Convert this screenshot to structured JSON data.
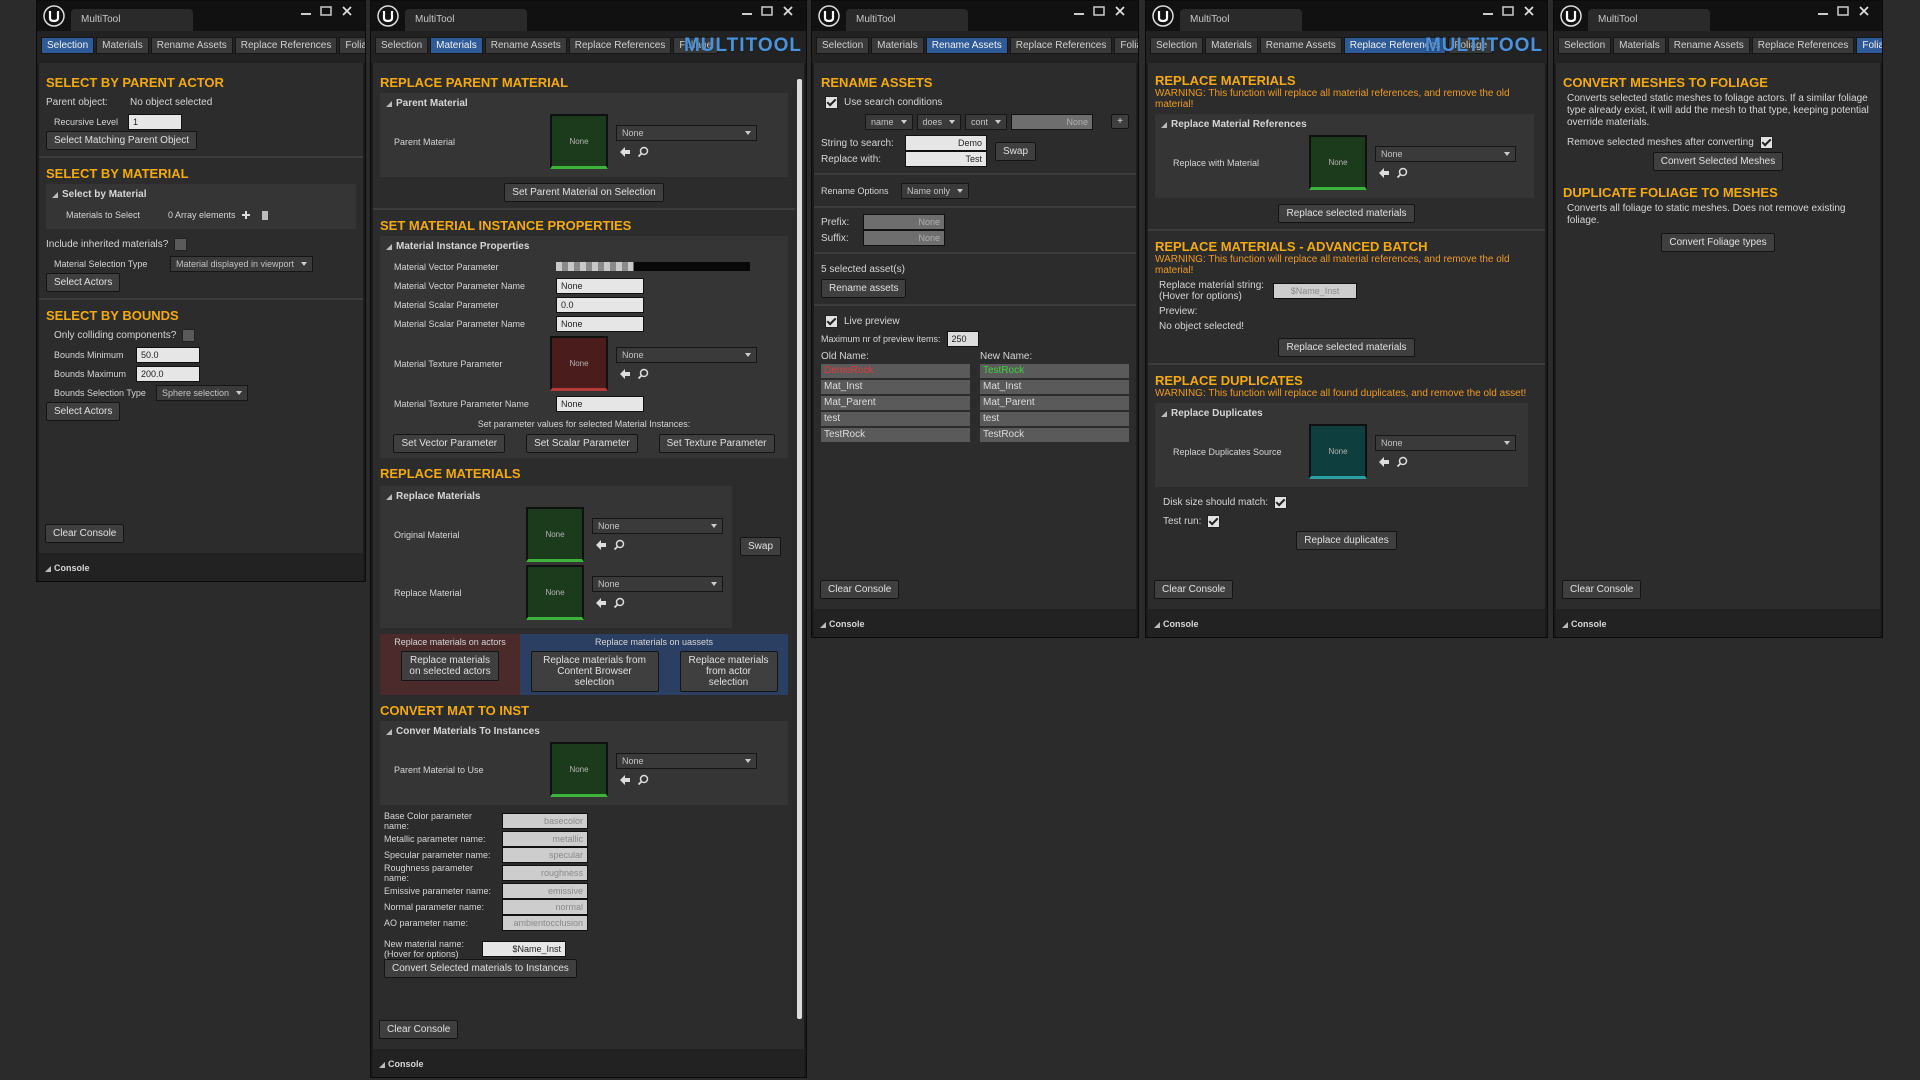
{
  "windows": [
    {
      "title": "MultiTool",
      "tabs": [
        "Selection",
        "Materials",
        "Rename Assets",
        "Replace References",
        "Foliage"
      ],
      "active": 0,
      "parent": {
        "heading": "SELECT BY PARENT ACTOR",
        "object_label": "Parent object:",
        "object_value": "No object selected",
        "level_label": "Recursive Level",
        "level_value": "1",
        "button": "Select Matching Parent Object"
      },
      "material": {
        "heading": "SELECT BY MATERIAL",
        "group": "Select by Material",
        "array_label": "Materials to Select",
        "array_value": "0 Array elements",
        "inherited": "Include inherited materials?",
        "inherited_checked": false,
        "type_label": "Material Selection Type",
        "type_value": "Material displayed in viewport",
        "button": "Select Actors"
      },
      "bounds": {
        "heading": "SELECT BY BOUNDS",
        "colliding": "Only colliding components?",
        "colliding_checked": false,
        "min_label": "Bounds Minimum",
        "min_value": "50.0",
        "max_label": "Bounds Maximum",
        "max_value": "200.0",
        "type_label": "Bounds Selection Type",
        "type_value": "Sphere selection",
        "button": "Select Actors"
      },
      "clear": "Clear Console",
      "console": "Console"
    },
    {
      "title": "MultiTool",
      "tabs": [
        "Selection",
        "Materials",
        "Rename Assets",
        "Replace References",
        "Foliage"
      ],
      "active": 1,
      "logo": "MULTITOOL",
      "parent": {
        "heading": "REPLACE PARENT MATERIAL",
        "group": "Parent Material",
        "label": "Parent Material",
        "thumb": "None",
        "dropdown": "None",
        "button": "Set Parent Material on Selection"
      },
      "instance": {
        "heading": "SET MATERIAL INSTANCE PROPERTIES",
        "group": "Material Instance Properties",
        "vector": "Material Vector Parameter",
        "vector_name": "Material Vector Parameter Name",
        "vector_name_value": "None",
        "scalar": "Material Scalar Parameter",
        "scalar_value": "0.0",
        "scalar_name": "Material Scalar Parameter Name",
        "scalar_name_value": "None",
        "texture": "Material Texture Parameter",
        "texture_thumb": "None",
        "texture_dropdown": "None",
        "texture_name": "Material Texture Parameter Name",
        "texture_name_value": "None",
        "note": "Set parameter values for selected Material Instances:",
        "buttons": [
          "Set Vector Parameter",
          "Set Scalar Parameter",
          "Set Texture Parameter"
        ]
      },
      "replace": {
        "heading": "REPLACE MATERIALS",
        "group": "Replace Materials",
        "original": "Original Material",
        "original_thumb": "None",
        "original_dropdown": "None",
        "replacement": "Replace Material",
        "replacement_thumb": "None",
        "replacement_dropdown": "None",
        "swap": "Swap",
        "actors_title": "Replace materials on actors",
        "actors_button": "Replace materials on selected actors",
        "uassets_title": "Replace materials on uassets",
        "uassets_buttons": [
          "Replace materials from Content Browser selection",
          "Replace materials from actor selection"
        ]
      },
      "convert": {
        "heading": "CONVERT MAT TO INST",
        "group": "Conver Materials To Instances",
        "label": "Parent Material to Use",
        "thumb": "None",
        "dropdown": "None",
        "params": [
          {
            "label": "Base Color parameter name:",
            "value": "basecolor"
          },
          {
            "label": "Metallic parameter name:",
            "value": "metallic"
          },
          {
            "label": "Specular parameter name:",
            "value": "specular"
          },
          {
            "label": "Roughness parameter name:",
            "value": "roughness"
          },
          {
            "label": "Emissive parameter name:",
            "value": "emissive"
          },
          {
            "label": "Normal parameter name:",
            "value": "normal"
          },
          {
            "label": "AO parameter name:",
            "value": "ambientocclusion"
          }
        ],
        "name_label": [
          "New material name:",
          "(Hover for options)"
        ],
        "name_value": "$Name_Inst",
        "button": "Convert Selected materials to Instances"
      },
      "clear": "Clear Console",
      "console": "Console"
    },
    {
      "title": "MultiTool",
      "tabs": [
        "Selection",
        "Materials",
        "Rename Assets",
        "Replace References",
        "Foliage"
      ],
      "active": 2,
      "rename": {
        "heading": "RENAME ASSETS",
        "search_conditions": "Use search conditions",
        "search_checked": true,
        "conditions": [
          "name",
          "does",
          "cont"
        ],
        "condition_value": "None",
        "add": "+",
        "search_label": "String to search:",
        "search_value": "Demo",
        "replace_label": "Replace with:",
        "replace_value": "Test",
        "swap": "Swap",
        "options_label": "Rename Options",
        "options_value": "Name only",
        "prefix_label": "Prefix:",
        "prefix_value": "None",
        "suffix_label": "Suffix:",
        "suffix_value": "None",
        "selected": "5  selected asset(s)",
        "button": "Rename assets",
        "live": "Live preview",
        "live_checked": true,
        "max_label": "Maximum nr of preview items:",
        "max_value": "250",
        "old_header": "Old Name:",
        "new_header": "New Name:",
        "old_names": [
          "DemoRock",
          "Mat_Inst",
          "Mat_Parent",
          "test",
          "TestRock"
        ],
        "new_names": [
          "TestRock",
          "Mat_Inst",
          "Mat_Parent",
          "test",
          "TestRock"
        ]
      },
      "clear": "Clear Console",
      "console": "Console"
    },
    {
      "title": "MultiTool",
      "tabs": [
        "Selection",
        "Materials",
        "Rename Assets",
        "Replace References",
        "Foliage"
      ],
      "active": 3,
      "logo": "MULTITOOL",
      "replace": {
        "heading": "REPLACE MATERIALS",
        "warning": "WARNING: This function will replace all material references, and remove the old material!",
        "group": "Replace Material References",
        "label": "Replace with Material",
        "thumb": "None",
        "dropdown": "None",
        "button": "Replace selected materials"
      },
      "batch": {
        "heading": "REPLACE MATERIALS - ADVANCED BATCH",
        "warning": "WARNING: This function will replace all material references, and remove the old material!",
        "string_label": [
          "Replace material string:",
          "(Hover for options)"
        ],
        "string_value": "$Name_Inst",
        "preview_label": "Preview:",
        "preview_value": "No object selected!",
        "button": "Replace selected materials"
      },
      "duplicates": {
        "heading": "REPLACE DUPLICATES",
        "warning": "WARNING: This function will replace all found duplicates, and remove the old asset!",
        "group": "Replace Duplicates",
        "label": "Replace Duplicates Source",
        "thumb": "None",
        "dropdown": "None",
        "disk": "Disk size should match:",
        "disk_checked": true,
        "test": "Test run:",
        "test_checked": true,
        "button": "Replace duplicates"
      },
      "clear": "Clear Console",
      "console": "Console"
    },
    {
      "title": "MultiTool",
      "tabs": [
        "Selection",
        "Materials",
        "Rename Assets",
        "Replace References",
        "Foliage"
      ],
      "active": 4,
      "meshes": {
        "heading": "CONVERT MESHES TO FOLIAGE",
        "text": "Converts selected static meshes to foliage actors. If a similar foliage type already exist, it will add the mesh to that type, keeping potential override materials.",
        "remove": "Remove selected meshes after converting",
        "remove_checked": true,
        "button": "Convert Selected Meshes"
      },
      "foliage": {
        "heading": "DUPLICATE FOLIAGE TO MESHES",
        "text": "Converts all foliage to static meshes. Does not remove existing foliage.",
        "button": "Convert Foliage types"
      },
      "clear": "Clear Console",
      "console": "Console"
    }
  ]
}
